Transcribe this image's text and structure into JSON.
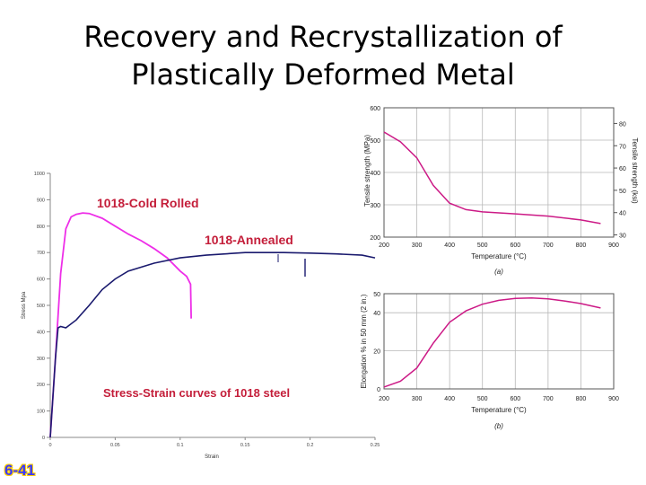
{
  "slide": {
    "title": "Recovery and Recrystallization of Plastically Deformed Metal",
    "number": "6-41"
  },
  "colors": {
    "magenta": "#ee2ee8",
    "navy": "#1a1a6e",
    "curve": "#cc1a86",
    "annotation": "#c41e3a",
    "grid": "#b8b8b8"
  },
  "chart_data": [
    {
      "type": "line",
      "title": "",
      "xlabel": "Strain",
      "ylabel": "Stress Mpa",
      "xlim": [
        0,
        0.25
      ],
      "ylim": [
        0,
        1000
      ],
      "x_ticks": [
        "0",
        "0.05",
        "0.1",
        "0.15",
        "0.2",
        "0.25"
      ],
      "y_ticks": [
        "0",
        "100",
        "200",
        "300",
        "400",
        "500",
        "600",
        "700",
        "800",
        "900",
        "1000"
      ],
      "annotations": {
        "cold_rolled": "1018-Cold Rolled",
        "annealed": "1018-Annealed",
        "caption": "Stress-Strain curves of 1018 steel"
      },
      "series": [
        {
          "name": "1018-Cold Rolled",
          "x": [
            0,
            0.004,
            0.008,
            0.012,
            0.016,
            0.02,
            0.025,
            0.03,
            0.04,
            0.05,
            0.06,
            0.07,
            0.08,
            0.09,
            0.1,
            0.105,
            0.108,
            0.1085
          ],
          "y": [
            0,
            300,
            620,
            790,
            835,
            845,
            850,
            848,
            830,
            800,
            770,
            745,
            715,
            680,
            630,
            610,
            580,
            450
          ]
        },
        {
          "name": "1018-Annealed",
          "x": [
            0,
            0.004,
            0.006,
            0.008,
            0.012,
            0.02,
            0.03,
            0.04,
            0.05,
            0.06,
            0.08,
            0.1,
            0.12,
            0.15,
            0.18,
            0.2,
            0.22,
            0.24,
            0.25
          ],
          "y": [
            0,
            300,
            415,
            420,
            415,
            445,
            500,
            560,
            600,
            630,
            660,
            680,
            690,
            700,
            700,
            698,
            695,
            690,
            680
          ]
        }
      ]
    },
    {
      "type": "line",
      "xlabel": "Temperature (°C)",
      "ylabel": "Tensile strength (MPa)",
      "ylabel_right": "Tensile strength (ksi)",
      "caption": "(a)",
      "xlim": [
        200,
        900
      ],
      "ylim": [
        200,
        600
      ],
      "x_ticks": [
        "200",
        "300",
        "400",
        "500",
        "600",
        "700",
        "800",
        "900"
      ],
      "y_ticks": [
        "200",
        "300",
        "400",
        "500",
        "600"
      ],
      "y_ticks_right": [
        "30",
        "40",
        "50",
        "60",
        "70",
        "80"
      ],
      "series": [
        {
          "name": "Tensile strength",
          "x": [
            200,
            250,
            300,
            350,
            400,
            450,
            500,
            600,
            700,
            800,
            860
          ],
          "y": [
            525,
            495,
            445,
            360,
            305,
            285,
            278,
            272,
            265,
            253,
            242
          ]
        }
      ]
    },
    {
      "type": "line",
      "xlabel": "Temperature (°C)",
      "ylabel": "Elongation % in 50 mm (2 in.)",
      "caption": "(b)",
      "xlim": [
        200,
        900
      ],
      "ylim": [
        0,
        50
      ],
      "x_ticks": [
        "200",
        "300",
        "400",
        "500",
        "600",
        "700",
        "800",
        "900"
      ],
      "y_ticks": [
        "0",
        "20",
        "40",
        "50"
      ],
      "series": [
        {
          "name": "Elongation",
          "x": [
            200,
            250,
            300,
            350,
            400,
            450,
            500,
            550,
            600,
            650,
            700,
            750,
            800,
            860
          ],
          "y": [
            1,
            4,
            11,
            24,
            35,
            41,
            44.5,
            46.5,
            47.5,
            47.8,
            47.3,
            46.2,
            44.8,
            42.5
          ]
        }
      ]
    }
  ]
}
